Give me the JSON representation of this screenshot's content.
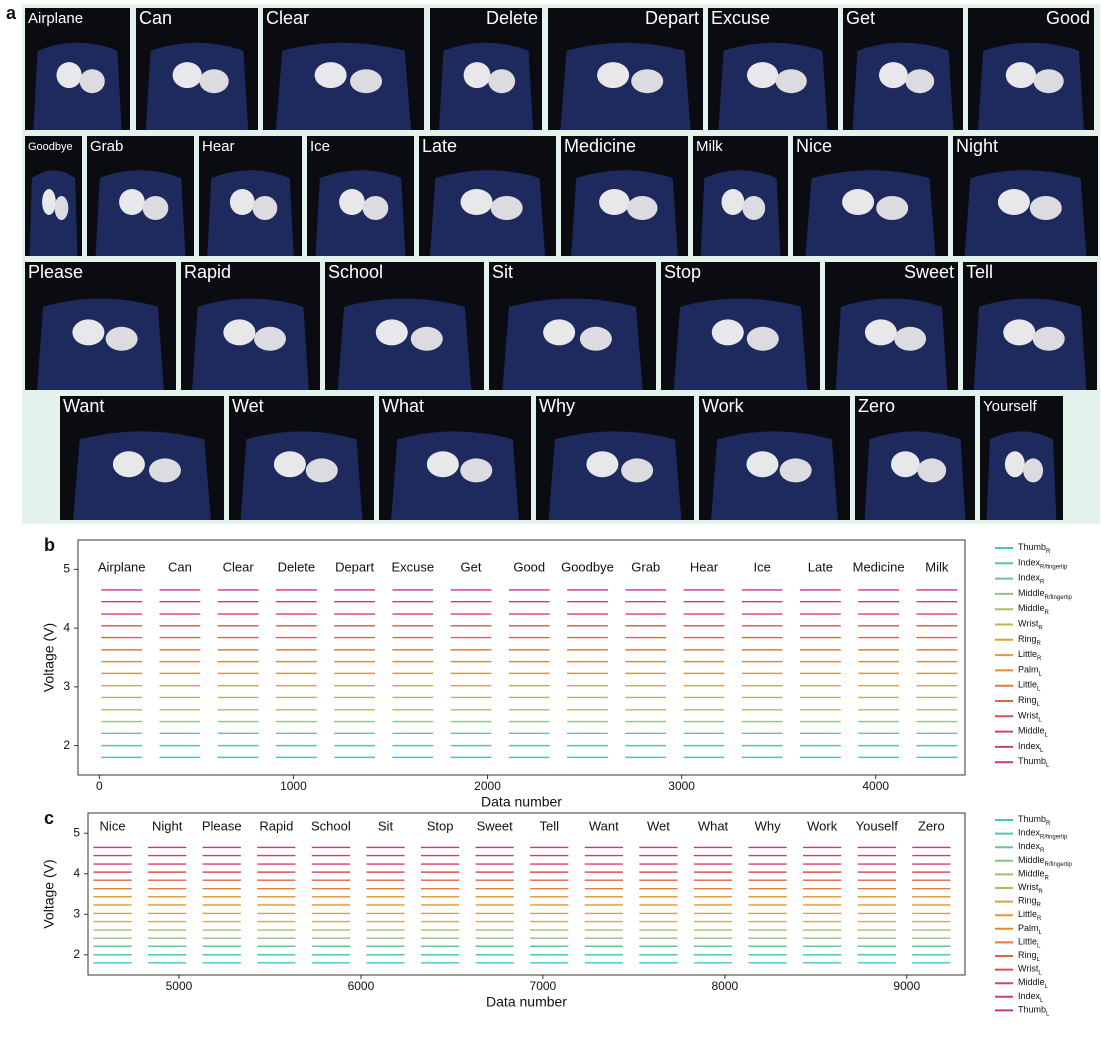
{
  "panel_a": {
    "label": "a",
    "rows": [
      [
        "Airplane",
        "Can",
        "Clear",
        "Delete",
        "Depart",
        "Excuse",
        "Get",
        "Good"
      ],
      [
        "Goodbye",
        "Grab",
        "Hear",
        "Ice",
        "Late",
        "Medicine",
        "Milk",
        "Nice",
        "Night"
      ],
      [
        "Please",
        "Rapid",
        "School",
        "Sit",
        "Stop",
        "Sweet",
        "Tell"
      ],
      [
        "Want",
        "Wet",
        "What",
        "Why",
        "Work",
        "Zero",
        "Yourself"
      ]
    ]
  },
  "chart_data": [
    {
      "type": "line",
      "panel": "b",
      "x_label": "Data number",
      "y_label": "Voltage (V)",
      "xlim": [
        -110,
        4460
      ],
      "xticks": [
        0,
        1000,
        2000,
        3000,
        4000
      ],
      "ylim": [
        1.5,
        5.5
      ],
      "yticks": [
        2,
        3,
        4,
        5
      ],
      "gestures": [
        {
          "name": "Airplane",
          "range": [
            10,
            220
          ]
        },
        {
          "name": "Can",
          "range": [
            310,
            520
          ]
        },
        {
          "name": "Clear",
          "range": [
            610,
            820
          ]
        },
        {
          "name": "Delete",
          "range": [
            910,
            1120
          ]
        },
        {
          "name": "Depart",
          "range": [
            1210,
            1420
          ]
        },
        {
          "name": "Excuse",
          "range": [
            1510,
            1720
          ]
        },
        {
          "name": "Get",
          "range": [
            1810,
            2020
          ]
        },
        {
          "name": "Good",
          "range": [
            2110,
            2320
          ]
        },
        {
          "name": "Goodbye",
          "range": [
            2410,
            2620
          ]
        },
        {
          "name": "Grab",
          "range": [
            2710,
            2920
          ]
        },
        {
          "name": "Hear",
          "range": [
            3010,
            3220
          ]
        },
        {
          "name": "Ice",
          "range": [
            3310,
            3520
          ]
        },
        {
          "name": "Late",
          "range": [
            3610,
            3820
          ]
        },
        {
          "name": "Medicine",
          "range": [
            3910,
            4120
          ]
        },
        {
          "name": "Milk",
          "range": [
            4210,
            4420
          ]
        }
      ],
      "series": [
        {
          "name": "Thumb",
          "sub": "R",
          "color": "#3fc9c2",
          "level": 1.8
        },
        {
          "name": "Index",
          "sub": "R/fingertip",
          "color": "#52c5b0",
          "level": 2.0
        },
        {
          "name": "Index",
          "sub": "R",
          "color": "#6cc29c",
          "level": 2.21
        },
        {
          "name": "Middle",
          "sub": "R/fingertip",
          "color": "#8cc284",
          "level": 2.41
        },
        {
          "name": "Middle",
          "sub": "R",
          "color": "#a6bf68",
          "level": 2.61
        },
        {
          "name": "Wrist",
          "sub": "R",
          "color": "#bcb450",
          "level": 2.82
        },
        {
          "name": "Ring",
          "sub": "R",
          "color": "#d0a53c",
          "level": 3.02
        },
        {
          "name": "Little",
          "sub": "R",
          "color": "#e09a2c",
          "level": 3.23
        },
        {
          "name": "Palm",
          "sub": "L",
          "color": "#e38c32",
          "level": 3.43
        },
        {
          "name": "Little",
          "sub": "L",
          "color": "#e27a3a",
          "level": 3.63
        },
        {
          "name": "Ring",
          "sub": "L",
          "color": "#e06444",
          "level": 3.84
        },
        {
          "name": "Wrist",
          "sub": "L",
          "color": "#dc5052",
          "level": 4.04
        },
        {
          "name": "Middle",
          "sub": "L",
          "color": "#d64264",
          "level": 4.24
        },
        {
          "name": "Index",
          "sub": "L",
          "color": "#d23a7a",
          "level": 4.45
        },
        {
          "name": "Thumb",
          "sub": "L",
          "color": "#cf3090",
          "level": 4.65
        }
      ]
    },
    {
      "type": "line",
      "panel": "c",
      "x_label": "Data number",
      "y_label": "Voltage (V)",
      "xlim": [
        4500,
        9320
      ],
      "xticks": [
        5000,
        6000,
        7000,
        8000,
        9000
      ],
      "ylim": [
        1.5,
        5.5
      ],
      "yticks": [
        2,
        3,
        4,
        5
      ],
      "gestures": [
        {
          "name": "Nice",
          "range": [
            4530,
            4740
          ]
        },
        {
          "name": "Night",
          "range": [
            4830,
            5040
          ]
        },
        {
          "name": "Please",
          "range": [
            5130,
            5340
          ]
        },
        {
          "name": "Rapid",
          "range": [
            5430,
            5640
          ]
        },
        {
          "name": "School",
          "range": [
            5730,
            5940
          ]
        },
        {
          "name": "Sit",
          "range": [
            6030,
            6240
          ]
        },
        {
          "name": "Stop",
          "range": [
            6330,
            6540
          ]
        },
        {
          "name": "Sweet",
          "range": [
            6630,
            6840
          ]
        },
        {
          "name": "Tell",
          "range": [
            6930,
            7140
          ]
        },
        {
          "name": "Want",
          "range": [
            7230,
            7440
          ]
        },
        {
          "name": "Wet",
          "range": [
            7530,
            7740
          ]
        },
        {
          "name": "What",
          "range": [
            7830,
            8040
          ]
        },
        {
          "name": "Why",
          "range": [
            8130,
            8340
          ]
        },
        {
          "name": "Work",
          "range": [
            8430,
            8640
          ]
        },
        {
          "name": "Youself",
          "range": [
            8730,
            8940
          ]
        },
        {
          "name": "Zero",
          "range": [
            9030,
            9240
          ]
        }
      ],
      "series": [
        {
          "name": "Thumb",
          "sub": "R",
          "color": "#3fc9c2",
          "level": 1.8
        },
        {
          "name": "Index",
          "sub": "R/fingertip",
          "color": "#52c5b0",
          "level": 2.0
        },
        {
          "name": "Index",
          "sub": "R",
          "color": "#6cc29c",
          "level": 2.21
        },
        {
          "name": "Middle",
          "sub": "R/fingertip",
          "color": "#8cc284",
          "level": 2.41
        },
        {
          "name": "Middle",
          "sub": "R",
          "color": "#a6bf68",
          "level": 2.61
        },
        {
          "name": "Wrist",
          "sub": "R",
          "color": "#bcb450",
          "level": 2.82
        },
        {
          "name": "Ring",
          "sub": "R",
          "color": "#d0a53c",
          "level": 3.02
        },
        {
          "name": "Little",
          "sub": "R",
          "color": "#e09a2c",
          "level": 3.23
        },
        {
          "name": "Palm",
          "sub": "L",
          "color": "#e38c32",
          "level": 3.43
        },
        {
          "name": "Little",
          "sub": "L",
          "color": "#e27a3a",
          "level": 3.63
        },
        {
          "name": "Ring",
          "sub": "L",
          "color": "#e06444",
          "level": 3.84
        },
        {
          "name": "Wrist",
          "sub": "L",
          "color": "#dc5052",
          "level": 4.04
        },
        {
          "name": "Middle",
          "sub": "L",
          "color": "#d64264",
          "level": 4.24
        },
        {
          "name": "Index",
          "sub": "L",
          "color": "#d23a7a",
          "level": 4.45
        },
        {
          "name": "Thumb",
          "sub": "L",
          "color": "#cf3090",
          "level": 4.65
        }
      ]
    }
  ]
}
